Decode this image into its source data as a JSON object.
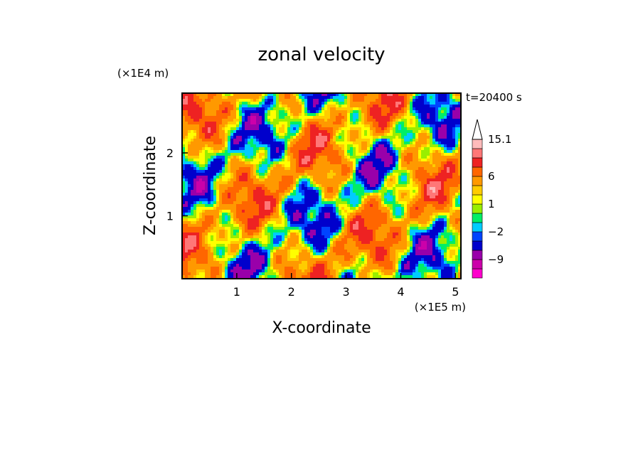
{
  "chart_data": {
    "type": "heatmap",
    "title": "zonal velocity",
    "xlabel": "X-coordinate",
    "ylabel": "Z-coordinate",
    "x_unit": "(×1E5 m)",
    "y_unit": "(×1E4 m)",
    "time_label": "t=20400 s",
    "xlim": [
      0,
      5.1
    ],
    "ylim": [
      0,
      2.95
    ],
    "x_ticks": [
      "1",
      "2",
      "3",
      "4",
      "5"
    ],
    "x_tick_values": [
      1,
      2,
      3,
      4,
      5
    ],
    "y_ticks": [
      "1",
      "2"
    ],
    "y_tick_values": [
      1,
      2
    ],
    "colorbar": {
      "labels": [
        "15.1",
        "6",
        "1",
        "−2",
        "−9"
      ],
      "label_values": [
        15.1,
        6,
        1,
        -2,
        -9
      ],
      "levels": [
        -15,
        -12,
        -9,
        -6,
        -3,
        -2,
        -1,
        0,
        1,
        2,
        3,
        6,
        9,
        12,
        15.1
      ],
      "colors": [
        "#ff00cc",
        "#cc00aa",
        "#9900aa",
        "#0000cc",
        "#0044ff",
        "#00ccff",
        "#00ee66",
        "#99ee00",
        "#ffff00",
        "#ffcc00",
        "#ff9900",
        "#ff6600",
        "#ee2222",
        "#ff7777",
        "#ffbbbb"
      ],
      "extend_top": true
    },
    "grid": false
  }
}
